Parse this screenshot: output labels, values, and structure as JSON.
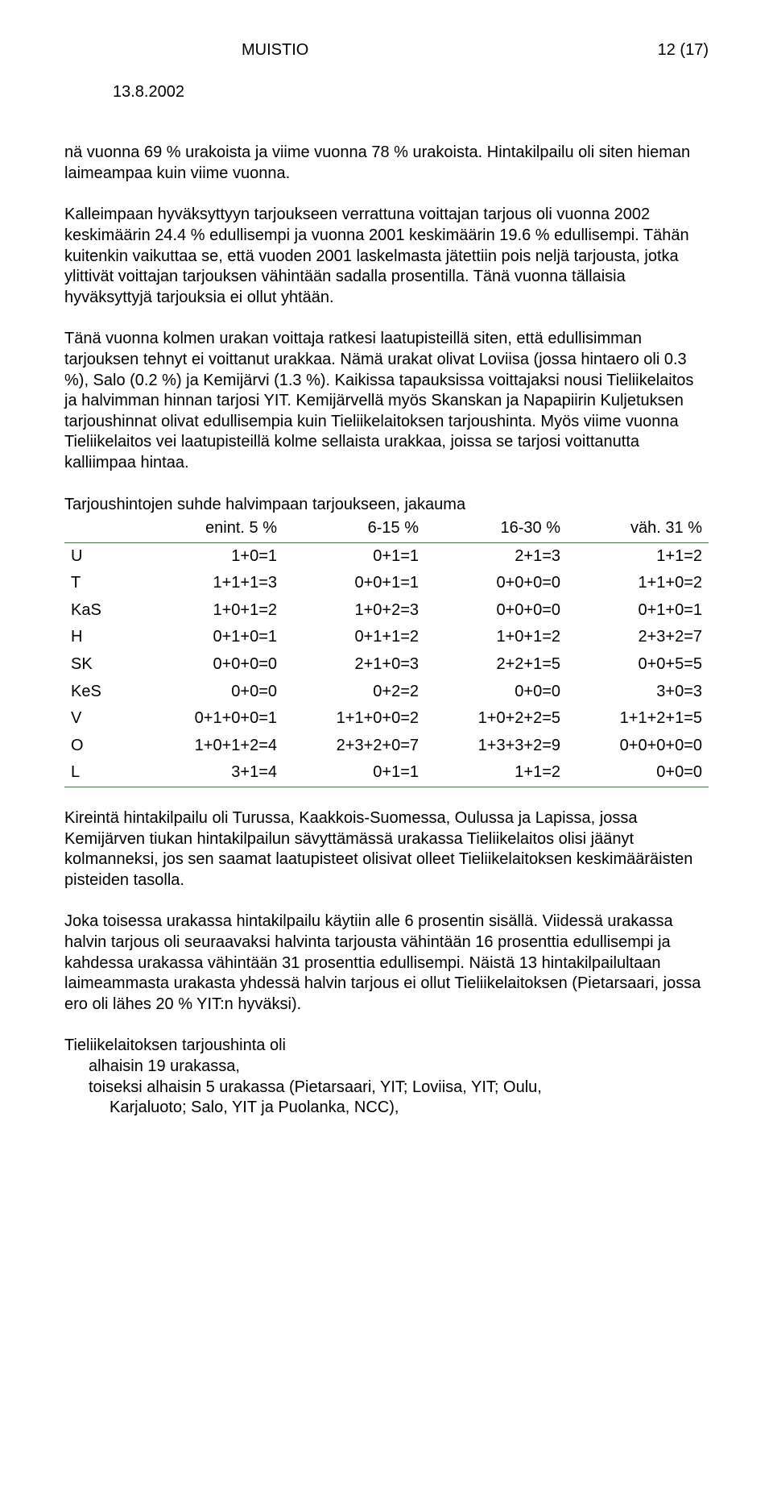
{
  "header": {
    "title": "MUISTIO",
    "pagenum": "12 (17)"
  },
  "date": "13.8.2002",
  "para1": "nä vuonna 69 % urakoista ja viime vuonna 78 % urakoista. Hintakilpailu oli siten hieman laimeampaa kuin viime vuonna.",
  "para2": "Kalleimpaan hyväksyttyyn tarjoukseen verrattuna voittajan tarjous oli vuonna 2002 keskimäärin 24.4 % edullisempi ja vuonna 2001 keskimäärin 19.6 % edullisempi. Tähän kuitenkin vaikuttaa se, että vuoden 2001 laskelmasta jätettiin pois neljä tarjousta, jotka ylittivät voittajan tarjouksen vähintään sadalla prosentilla. Tänä vuonna tällaisia hyväksyttyjä tarjouksia ei ollut yhtään.",
  "para3": "Tänä vuonna kolmen urakan voittaja ratkesi laatupisteillä siten, että edullisimman tarjouksen tehnyt ei voittanut urakkaa. Nämä urakat olivat Loviisa (jossa hintaero oli 0.3 %), Salo (0.2 %) ja Kemijärvi (1.3 %). Kaikissa tapauksissa voittajaksi nousi Tieliikelaitos ja halvimman hinnan tarjosi YIT. Kemijärvellä myös Skanskan ja Napapiirin Kuljetuksen tarjoushinnat olivat edullisempia kuin Tieliikelaitoksen tarjoushinta. Myös viime vuonna Tieliikelaitos vei laatupisteillä kolme sellaista urakkaa, joissa se tarjosi voittanutta kalliimpaa hintaa.",
  "table_title": "Tarjoushintojen suhde halvimpaan tarjoukseen, jakauma",
  "table": {
    "border_color": "#2e7d32",
    "columns": [
      "",
      "enint. 5 %",
      "6-15 %",
      "16-30 %",
      "väh. 31 %"
    ],
    "rows": [
      [
        "U",
        "1+0=1",
        "0+1=1",
        "2+1=3",
        "1+1=2"
      ],
      [
        "T",
        "1+1+1=3",
        "0+0+1=1",
        "0+0+0=0",
        "1+1+0=2"
      ],
      [
        "KaS",
        "1+0+1=2",
        "1+0+2=3",
        "0+0+0=0",
        "0+1+0=1"
      ],
      [
        "H",
        "0+1+0=1",
        "0+1+1=2",
        "1+0+1=2",
        "2+3+2=7"
      ],
      [
        "SK",
        "0+0+0=0",
        "2+1+0=3",
        "2+2+1=5",
        "0+0+5=5"
      ],
      [
        "KeS",
        "0+0=0",
        "0+2=2",
        "0+0=0",
        "3+0=3"
      ],
      [
        "V",
        "0+1+0+0=1",
        "1+1+0+0=2",
        "1+0+2+2=5",
        "1+1+2+1=5"
      ],
      [
        "O",
        "1+0+1+2=4",
        "2+3+2+0=7",
        "1+3+3+2=9",
        "0+0+0+0=0"
      ],
      [
        "L",
        "3+1=4",
        "0+1=1",
        "1+1=2",
        "0+0=0"
      ]
    ]
  },
  "para4": "Kireintä hintakilpailu oli Turussa, Kaakkois-Suomessa, Oulussa ja Lapissa, jossa Kemijärven tiukan hintakilpailun sävyttämässä urakassa Tieliikelaitos olisi jäänyt kolmanneksi, jos sen saamat laatupisteet olisivat olleet Tieliikelaitoksen keskimääräisten pisteiden tasolla.",
  "para5": "Joka toisessa urakassa hintakilpailu käytiin alle 6 prosentin sisällä. Viidessä urakassa halvin tarjous oli seuraavaksi halvinta tarjousta vähintään 16 prosenttia edullisempi ja kahdessa urakassa vähintään 31 prosenttia edullisempi. Näistä 13 hintakilpailultaan laimeammasta urakasta yhdessä halvin tarjous ei ollut Tieliikelaitoksen (Pietarsaari, jossa ero oli lähes 20 % YIT:n hyväksi).",
  "para6": {
    "l1": "Tieliikelaitoksen tarjoushinta oli",
    "l2": "alhaisin 19 urakassa,",
    "l3": "toiseksi alhaisin 5 urakassa (Pietarsaari, YIT; Loviisa, YIT; Oulu,",
    "l4": "Karjaluoto; Salo, YIT ja Puolanka, NCC),"
  }
}
